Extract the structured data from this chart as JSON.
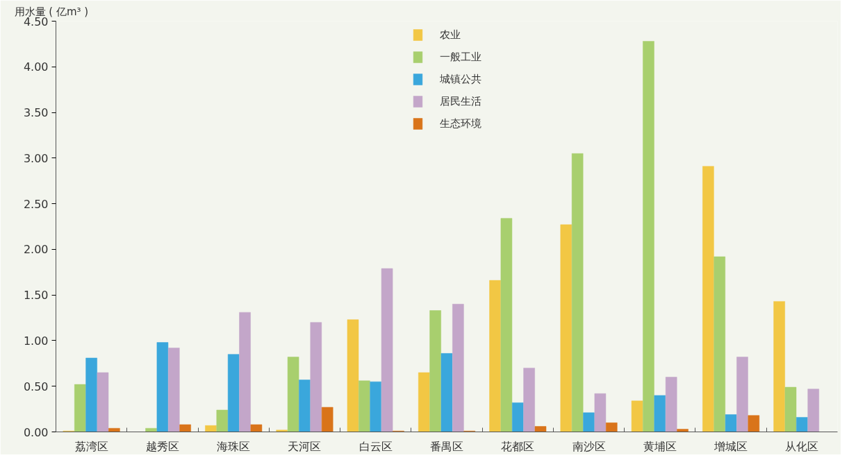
{
  "chart_data": {
    "type": "bar",
    "ylabel": "用水量 ( 亿m³ )",
    "categories": [
      "荔湾区",
      "越秀区",
      "海珠区",
      "天河区",
      "白云区",
      "番禺区",
      "花都区",
      "南沙区",
      "黄埔区",
      "增城区",
      "从化区"
    ],
    "series": [
      {
        "name": "农业",
        "color": "#f2c744",
        "values": [
          0.01,
          0,
          0.07,
          0.02,
          1.23,
          0.65,
          1.66,
          2.27,
          0.34,
          2.91,
          1.43
        ]
      },
      {
        "name": "一般工业",
        "color": "#a8cf6e",
        "values": [
          0.52,
          0.04,
          0.24,
          0.82,
          0.56,
          1.33,
          2.34,
          3.05,
          4.28,
          1.92,
          0.49
        ]
      },
      {
        "name": "城镇公共",
        "color": "#3aa7dc",
        "values": [
          0.81,
          0.98,
          0.85,
          0.57,
          0.55,
          0.86,
          0.32,
          0.21,
          0.4,
          0.19,
          0.16
        ]
      },
      {
        "name": "居民生活",
        "color": "#c3a6c9",
        "values": [
          0.65,
          0.92,
          1.31,
          1.2,
          1.79,
          1.4,
          0.7,
          0.42,
          0.6,
          0.82,
          0.47
        ]
      },
      {
        "name": "生态环境",
        "color": "#d9741a",
        "values": [
          0.04,
          0.08,
          0.08,
          0.27,
          0.01,
          0.01,
          0.06,
          0.1,
          0.03,
          0.18,
          0
        ]
      }
    ],
    "ylim": [
      0,
      4.5
    ],
    "yticks": [
      {
        "value": 0,
        "label": "0.00"
      },
      {
        "value": 0.5,
        "label": "0.50"
      },
      {
        "value": 1,
        "label": "1.00"
      },
      {
        "value": 1.5,
        "label": "1.50"
      },
      {
        "value": 2,
        "label": "2.00"
      },
      {
        "value": 2.5,
        "label": "2.50"
      },
      {
        "value": 3,
        "label": "3.00"
      },
      {
        "value": 3.5,
        "label": "3.50"
      },
      {
        "value": 4,
        "label": "4.00"
      },
      {
        "value": 4.5,
        "label": "4.50"
      }
    ],
    "grid": false,
    "legend": "top"
  }
}
